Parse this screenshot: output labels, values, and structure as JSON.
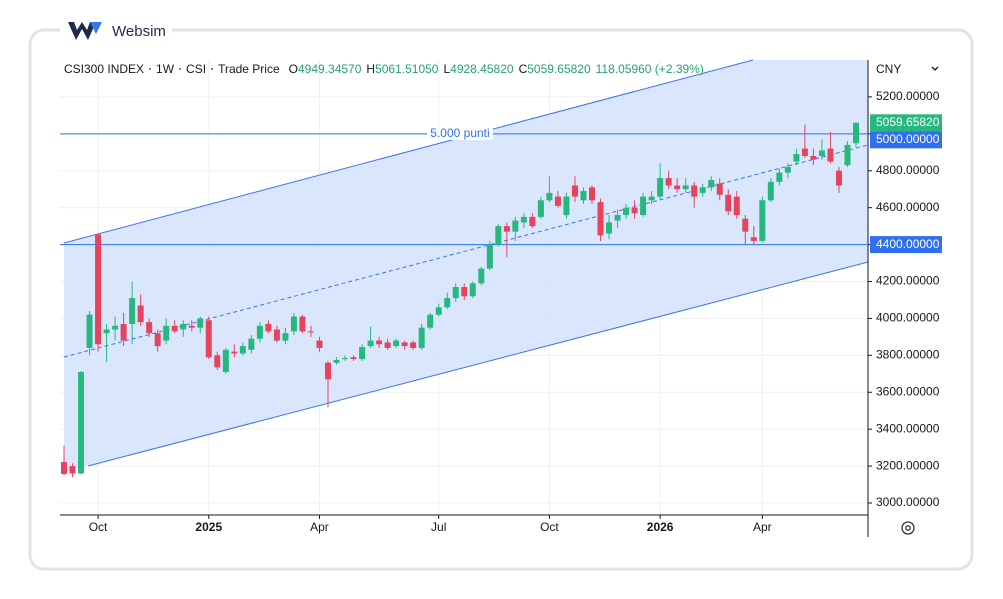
{
  "logo": "Websim",
  "header": {
    "symbol": "CSI300 INDEX",
    "interval": "1W",
    "exchange": "CSI",
    "price_type": "Trade Price",
    "open_label": "O",
    "open": "4949.34570",
    "high_label": "H",
    "high": "5061.51050",
    "low_label": "L",
    "low": "4928.45820",
    "close_label": "C",
    "close": "5059.65820",
    "change": "118.05960 (+2.39%)"
  },
  "currency": "CNY",
  "chart_data": {
    "type": "candlestick",
    "categories": [
      null,
      null,
      null,
      null,
      "Oct",
      null,
      null,
      null,
      null,
      null,
      null,
      null,
      null,
      null,
      null,
      null,
      null,
      "2025",
      null,
      null,
      null,
      null,
      null,
      null,
      null,
      null,
      null,
      null,
      null,
      null,
      "Apr",
      null,
      null,
      null,
      null,
      null,
      null,
      null,
      null,
      null,
      null,
      null,
      null,
      null,
      "Jul",
      null,
      null,
      null,
      null,
      null,
      null,
      null,
      null,
      null,
      null,
      null,
      null,
      "Oct",
      null,
      null,
      null,
      null,
      null,
      null,
      null,
      null,
      null,
      null,
      null,
      null,
      "2026",
      null,
      null,
      null,
      null,
      null,
      null,
      null,
      null,
      null,
      null,
      null,
      "Apr",
      null,
      null,
      null,
      null,
      null,
      null,
      null,
      null,
      null,
      null,
      null
    ],
    "open": [
      3222,
      3200,
      3160,
      3840,
      4455,
      3920,
      3940,
      3970,
      3970,
      4070,
      3980,
      3920,
      3880,
      3960,
      3940,
      3960,
      3950,
      3990,
      3800,
      3710,
      3820,
      3810,
      3830,
      3890,
      3970,
      3940,
      3880,
      3930,
      4010,
      3930,
      3880,
      3760,
      3760,
      3780,
      3790,
      3780,
      3850,
      3880,
      3870,
      3850,
      3870,
      3870,
      3840,
      3950,
      4020,
      4060,
      4110,
      4170,
      4120,
      4190,
      4270,
      4400,
      4500,
      4470,
      4520,
      4550,
      4550,
      4640,
      4660,
      4560,
      4720,
      4640,
      4710,
      4630,
      4460,
      4530,
      4560,
      4600,
      4560,
      4640,
      4660,
      4760,
      4720,
      4700,
      4720,
      4680,
      4710,
      4730,
      4670,
      4660,
      4540,
      4440,
      4420,
      4640,
      4740,
      4790,
      4850,
      4920,
      4880,
      4880,
      4920,
      4800,
      4830,
      4949.3457
    ],
    "high": [
      3310,
      3215,
      3715,
      4040,
      4460,
      3970,
      4010,
      4030,
      4200,
      4130,
      4000,
      3940,
      4000,
      3990,
      3990,
      3990,
      4010,
      4010,
      3820,
      3840,
      3860,
      3870,
      3910,
      3980,
      3990,
      3960,
      3950,
      4030,
      4020,
      3960,
      3900,
      3770,
      3790,
      3800,
      3800,
      3860,
      3955,
      3900,
      3890,
      3890,
      3880,
      3880,
      3970,
      4030,
      4080,
      4140,
      4190,
      4190,
      4200,
      4280,
      4420,
      4510,
      4520,
      4550,
      4570,
      4570,
      4660,
      4770,
      4690,
      4680,
      4770,
      4710,
      4720,
      4650,
      4560,
      4590,
      4620,
      4640,
      4680,
      4690,
      4840,
      4800,
      4760,
      4760,
      4740,
      4730,
      4770,
      4760,
      4700,
      4690,
      4560,
      4500,
      4660,
      4760,
      4810,
      4840,
      4920,
      5050,
      4920,
      4970,
      5010,
      4820,
      4960,
      5061.5105
    ],
    "low": [
      3150,
      3140,
      3155,
      3800,
      3820,
      3765,
      3880,
      3850,
      3860,
      3960,
      3900,
      3820,
      3860,
      3920,
      3900,
      3930,
      3920,
      3780,
      3720,
      3700,
      3790,
      3800,
      3810,
      3870,
      3920,
      3870,
      3860,
      3910,
      3920,
      3900,
      3820,
      3520,
      3750,
      3770,
      3770,
      3770,
      3840,
      3840,
      3830,
      3840,
      3830,
      3830,
      3830,
      3940,
      4010,
      4050,
      4090,
      4100,
      4110,
      4180,
      4260,
      4390,
      4330,
      4420,
      4490,
      4490,
      4540,
      4630,
      4600,
      4540,
      4630,
      4620,
      4620,
      4420,
      4430,
      4490,
      4540,
      4540,
      4550,
      4620,
      4640,
      4700,
      4680,
      4680,
      4600,
      4660,
      4690,
      4640,
      4560,
      4540,
      4400,
      4400,
      4410,
      4630,
      4720,
      4760,
      4830,
      4870,
      4830,
      4860,
      4840,
      4680,
      4820,
      4928.4582
    ],
    "close": [
      3157,
      3160,
      3710,
      4020,
      3860,
      3940,
      3960,
      3880,
      4110,
      3980,
      3920,
      3850,
      3960,
      3930,
      3970,
      3950,
      4000,
      3790,
      3735,
      3830,
      3810,
      3850,
      3890,
      3960,
      3930,
      3880,
      3920,
      4010,
      3930,
      3925,
      3840,
      3670,
      3775,
      3785,
      3780,
      3845,
      3880,
      3860,
      3840,
      3880,
      3850,
      3840,
      3950,
      4020,
      4060,
      4110,
      4170,
      4120,
      4190,
      4270,
      4400,
      4500,
      4470,
      4530,
      4550,
      4500,
      4640,
      4680,
      4610,
      4660,
      4660,
      4690,
      4640,
      4450,
      4520,
      4560,
      4600,
      4570,
      4660,
      4660,
      4760,
      4720,
      4700,
      4720,
      4660,
      4710,
      4750,
      4670,
      4580,
      4560,
      4470,
      4420,
      4640,
      4740,
      4790,
      4820,
      4890,
      4880,
      4860,
      4910,
      4850,
      4720,
      4940,
      5059.6582
    ],
    "up_color": "#26b87e",
    "down_color": "#e5435e",
    "ylim": [
      2935,
      5400
    ],
    "yticks": [
      {
        "value": 3000,
        "label": "3000.00000"
      },
      {
        "value": 3200,
        "label": "3200.00000"
      },
      {
        "value": 3400,
        "label": "3400.00000"
      },
      {
        "value": 3600,
        "label": "3600.00000"
      },
      {
        "value": 3800,
        "label": "3800.00000"
      },
      {
        "value": 4000,
        "label": "4000.00000"
      },
      {
        "value": 4200,
        "label": "4200.00000"
      },
      {
        "value": 4400,
        "label": "4400.00000"
      },
      {
        "value": 4600,
        "label": "4600.00000"
      },
      {
        "value": 4800,
        "label": "4800.00000"
      },
      {
        "value": 5000,
        "label": "5000.00000"
      },
      {
        "value": 5200,
        "label": "5200.00000"
      }
    ],
    "grid": true,
    "hlines": [
      {
        "value": 5000,
        "label": "5000.00000",
        "text": "5.000 punti",
        "color": "#2f6ff0"
      },
      {
        "value": 4400,
        "label": "4400.00000",
        "color": "#2f6ff0"
      }
    ],
    "last_price": {
      "value": 5059.6582,
      "label": "5059.65820",
      "color": "#26b87e"
    }
  }
}
